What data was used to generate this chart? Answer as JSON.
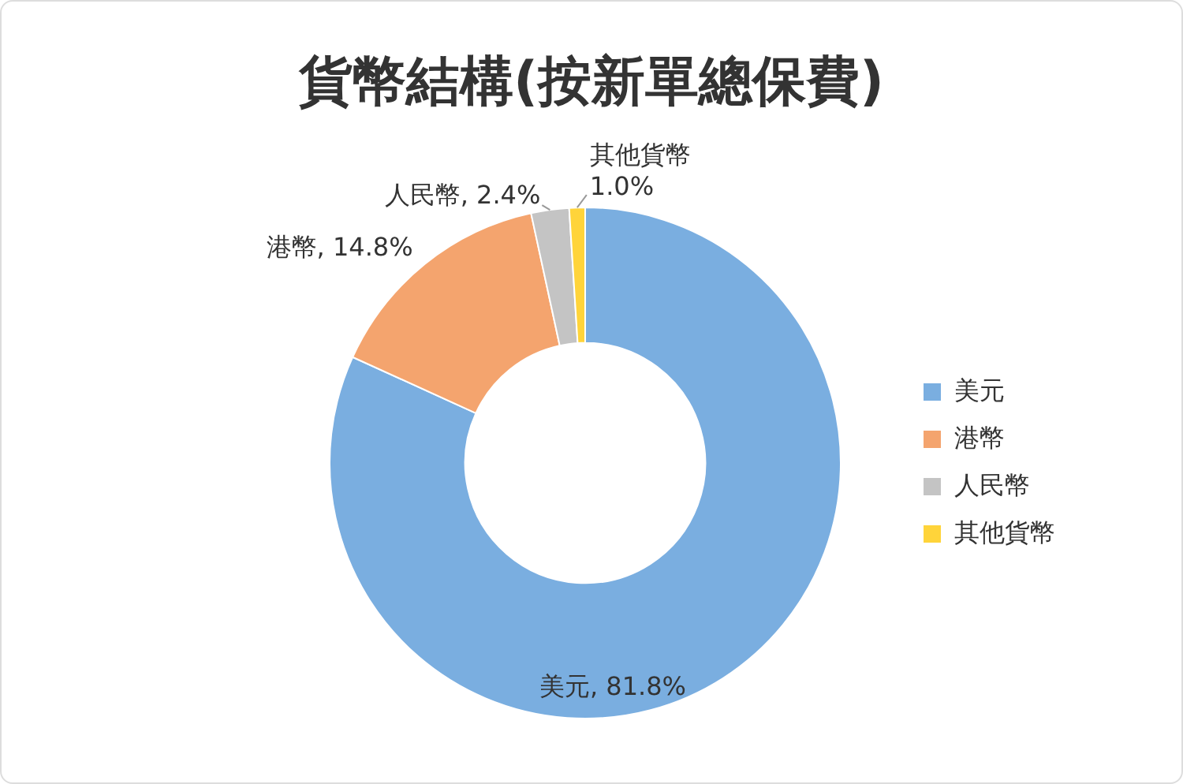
{
  "chart_data": {
    "type": "donut",
    "title": "貨幣結構(按新單總保費)",
    "categories": [
      "美元",
      "港幣",
      "人民幣",
      "其他貨幣"
    ],
    "values": [
      81.8,
      14.8,
      2.4,
      1.0
    ],
    "colors": [
      "#7aaee0",
      "#f4a46e",
      "#c4c4c4",
      "#ffd43a"
    ],
    "value_labels": [
      "美元, 81.8%",
      "港幣, 14.8%",
      "人民幣, 2.4%",
      "其他貨幣\n1.0%"
    ],
    "legend": "right"
  }
}
